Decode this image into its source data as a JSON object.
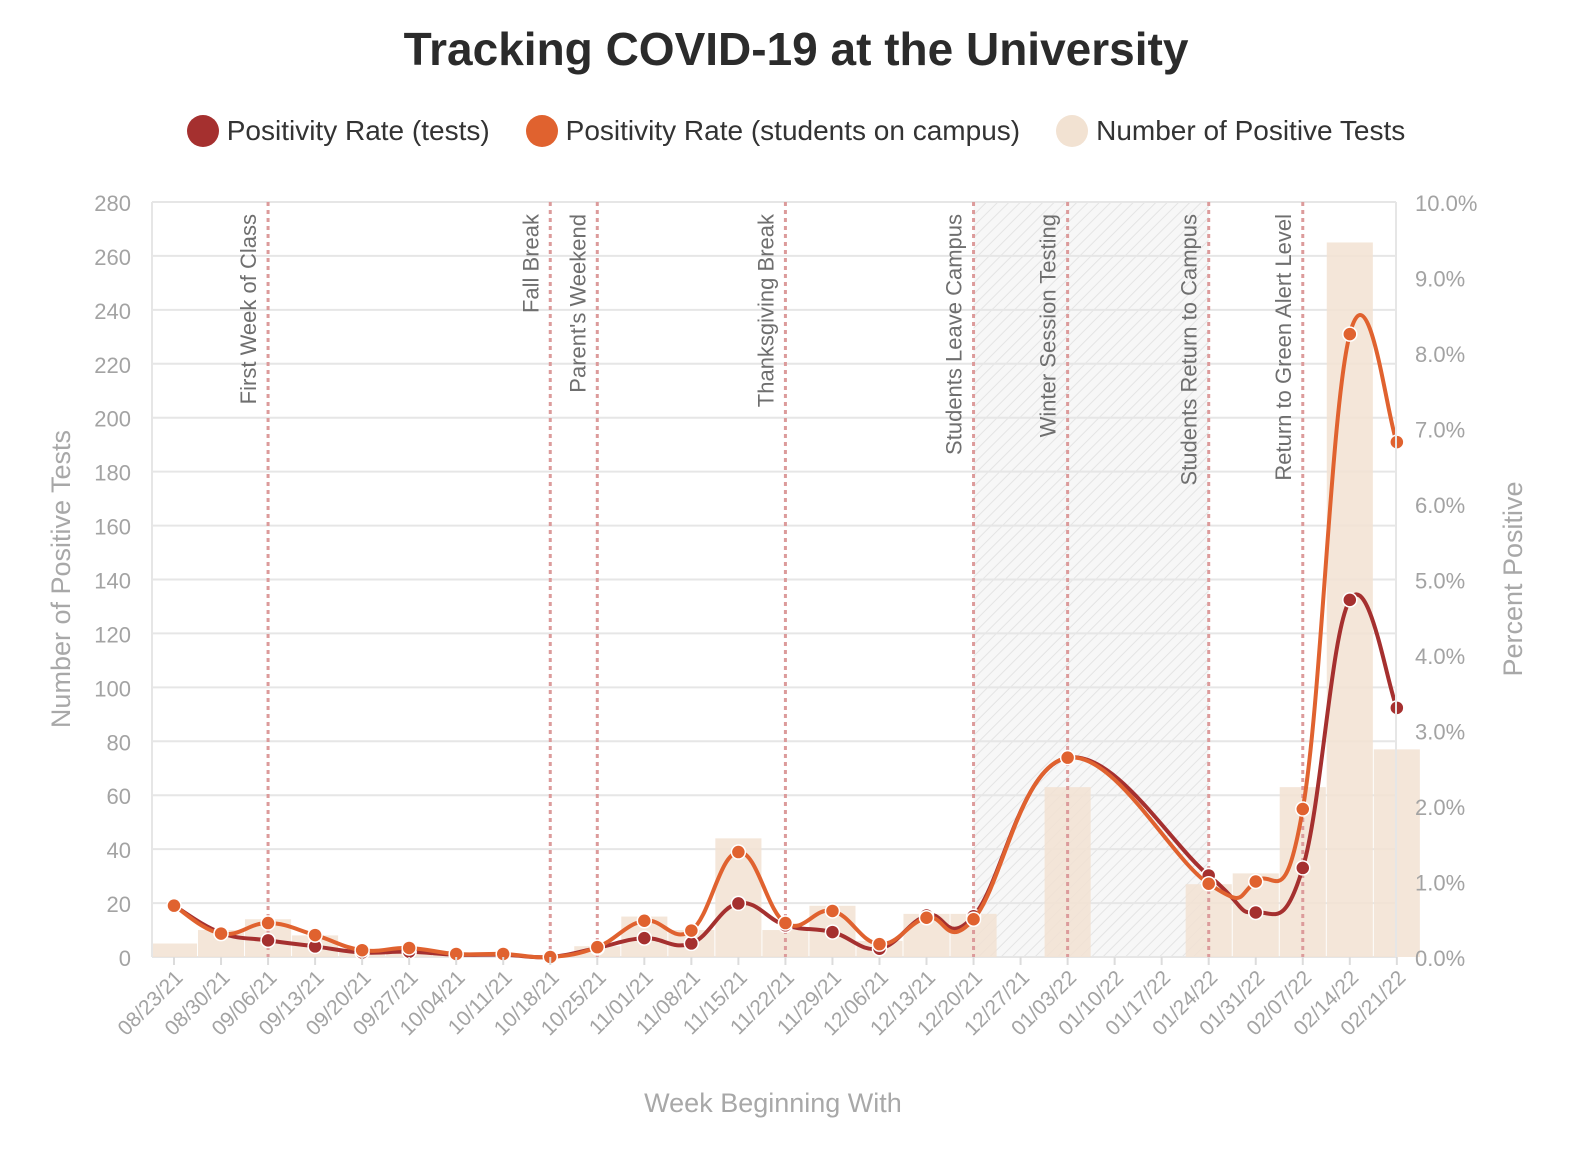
{
  "title": "Tracking COVID-19 at the University",
  "legend": [
    {
      "label": "Positivity Rate (tests)",
      "color": "#a5302f"
    },
    {
      "label": "Positivity Rate (students on campus)",
      "color": "#e0622f"
    },
    {
      "label": "Number of Positive Tests",
      "color": "#f2e2d2"
    }
  ],
  "chart_data": {
    "type": "bar+line",
    "title": "Tracking COVID-19 at the University",
    "xlabel": "Week Beginning With",
    "ylabel_left": "Number of Positive Tests",
    "ylabel_right": "Percent Positive",
    "ylim_left": [
      0,
      280
    ],
    "ylim_right": [
      0,
      10
    ],
    "left_ticks": [
      "0",
      "20",
      "40",
      "60",
      "80",
      "100",
      "120",
      "140",
      "160",
      "180",
      "200",
      "220",
      "240",
      "260",
      "280"
    ],
    "right_ticks": [
      "0.0%",
      "1.0%",
      "2.0%",
      "3.0%",
      "4.0%",
      "5.0%",
      "6.0%",
      "7.0%",
      "8.0%",
      "9.0%",
      "10.0%"
    ],
    "categories": [
      "08/23/21",
      "08/30/21",
      "09/06/21",
      "09/13/21",
      "09/20/21",
      "09/27/21",
      "10/04/21",
      "10/11/21",
      "10/18/21",
      "10/25/21",
      "11/01/21",
      "11/08/21",
      "11/15/21",
      "11/22/21",
      "11/29/21",
      "12/06/21",
      "12/13/21",
      "12/20/21",
      "12/27/21",
      "01/03/22",
      "01/10/22",
      "01/17/22",
      "01/24/22",
      "01/31/22",
      "02/07/22",
      "02/14/22",
      "02/21/22"
    ],
    "series": [
      {
        "name": "Number of Positive Tests",
        "type": "bar",
        "axis": "left",
        "values": [
          5,
          10,
          14,
          8,
          3,
          3,
          1,
          1,
          0,
          4,
          15,
          10,
          44,
          10,
          19,
          6,
          16,
          16,
          0,
          63,
          0,
          0,
          27,
          31,
          63,
          265,
          77
        ]
      },
      {
        "name": "Positivity Rate (tests)",
        "type": "line",
        "axis": "right",
        "values": [
          0.68,
          0.32,
          0.22,
          0.14,
          0.06,
          0.07,
          0.03,
          0.03,
          0.0,
          0.12,
          0.25,
          0.18,
          0.71,
          0.42,
          0.33,
          0.11,
          0.55,
          0.54,
          null,
          2.64,
          null,
          null,
          1.08,
          0.59,
          1.18,
          4.73,
          3.3
        ]
      },
      {
        "name": "Positivity Rate (students on campus)",
        "type": "line",
        "axis": "right",
        "values": [
          0.68,
          0.31,
          0.45,
          0.29,
          0.09,
          0.12,
          0.04,
          0.04,
          0.0,
          0.13,
          0.48,
          0.35,
          1.39,
          0.45,
          0.61,
          0.17,
          0.52,
          0.5,
          null,
          2.64,
          null,
          null,
          0.97,
          1.0,
          1.96,
          8.25,
          6.82
        ]
      }
    ],
    "events": [
      {
        "label": "First Week of Class",
        "week": "09/06/21"
      },
      {
        "label": "Fall Break",
        "week": "10/18/21"
      },
      {
        "label": "Parent's Weekend",
        "week": "10/25/21"
      },
      {
        "label": "Thanksgiving Break",
        "week": "11/22/21"
      },
      {
        "label": "Students Leave Campus",
        "week": "12/20/21"
      },
      {
        "label": "Winter Session Testing",
        "week": "01/03/22"
      },
      {
        "label": "Students Return to Campus",
        "week": "01/24/22"
      },
      {
        "label": "Return to Green Alert Level",
        "week": "02/07/22"
      }
    ],
    "shaded_period": {
      "from": "12/20/21",
      "to": "01/24/22"
    }
  }
}
